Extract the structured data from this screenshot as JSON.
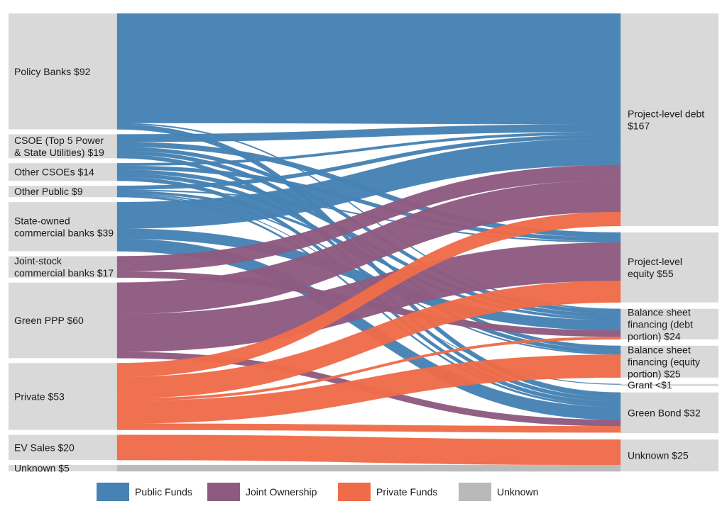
{
  "colors": {
    "public": "#4682b4",
    "joint": "#8e5b80",
    "private": "#ee6c49",
    "unknown": "#b9b9b9",
    "node": "#d9d9d9"
  },
  "chart_data": {
    "type": "sankey",
    "unit": "$",
    "sources": [
      {
        "id": "policy",
        "label_lines": [
          "Policy Banks $92"
        ],
        "value": 92
      },
      {
        "id": "csoe5",
        "label_lines": [
          "CSOE (Top 5 Power",
          "& State Utilities) $19"
        ],
        "value": 19
      },
      {
        "id": "csoe",
        "label_lines": [
          "Other CSOEs $14"
        ],
        "value": 14
      },
      {
        "id": "otherpub",
        "label_lines": [
          "Other Public $9"
        ],
        "value": 9
      },
      {
        "id": "socb",
        "label_lines": [
          "State-owned",
          "commercial banks $39"
        ],
        "value": 39
      },
      {
        "id": "jscb",
        "label_lines": [
          "Joint-stock",
          "commercial banks $17"
        ],
        "value": 17
      },
      {
        "id": "ppp",
        "label_lines": [
          "Green PPP $60"
        ],
        "value": 60
      },
      {
        "id": "private",
        "label_lines": [
          "Private $53"
        ],
        "value": 53
      },
      {
        "id": "ev",
        "label_lines": [
          "EV Sales $20"
        ],
        "value": 20
      },
      {
        "id": "unknown_src",
        "label_lines": [
          "Unknown $5"
        ],
        "value": 5
      }
    ],
    "targets": [
      {
        "id": "pdebt",
        "label_lines": [
          "Project-level debt",
          "$167"
        ],
        "value": 167
      },
      {
        "id": "pequity",
        "label_lines": [
          "Project-level",
          "equity $55"
        ],
        "value": 55
      },
      {
        "id": "bsdebt",
        "label_lines": [
          "Balance sheet",
          "financing (debt",
          "portion) $24"
        ],
        "value": 24
      },
      {
        "id": "bsequity",
        "label_lines": [
          "Balance sheet",
          "financing (equity",
          "portion) $25"
        ],
        "value": 25
      },
      {
        "id": "grant",
        "label_lines": [
          "Grant <$1"
        ],
        "value": 0.5
      },
      {
        "id": "gbond",
        "label_lines": [
          "Green Bond $32"
        ],
        "value": 32
      },
      {
        "id": "unknown_tgt",
        "label_lines": [
          "Unknown $25"
        ],
        "value": 25
      }
    ],
    "flows": [
      {
        "source": "policy",
        "target": "pdebt",
        "value": 87,
        "category": "public"
      },
      {
        "source": "policy",
        "target": "bsdebt",
        "value": 1,
        "category": "public"
      },
      {
        "source": "policy",
        "target": "gbond",
        "value": 4,
        "category": "public"
      },
      {
        "source": "csoe5",
        "target": "pdebt",
        "value": 6,
        "category": "public"
      },
      {
        "source": "csoe5",
        "target": "pequity",
        "value": 4,
        "category": "public"
      },
      {
        "source": "csoe5",
        "target": "bsdebt",
        "value": 3,
        "category": "public"
      },
      {
        "source": "csoe5",
        "target": "bsequity",
        "value": 3,
        "category": "public"
      },
      {
        "source": "csoe5",
        "target": "gbond",
        "value": 3,
        "category": "public"
      },
      {
        "source": "csoe",
        "target": "pdebt",
        "value": 2,
        "category": "public"
      },
      {
        "source": "csoe",
        "target": "pequity",
        "value": 3,
        "category": "public"
      },
      {
        "source": "csoe",
        "target": "bsdebt",
        "value": 3,
        "category": "public"
      },
      {
        "source": "csoe",
        "target": "bsequity",
        "value": 3,
        "category": "public"
      },
      {
        "source": "csoe",
        "target": "gbond",
        "value": 3,
        "category": "public"
      },
      {
        "source": "otherpub",
        "target": "pdebt",
        "value": 3,
        "category": "public"
      },
      {
        "source": "otherpub",
        "target": "pequity",
        "value": 1,
        "category": "public"
      },
      {
        "source": "otherpub",
        "target": "bsdebt",
        "value": 2,
        "category": "public"
      },
      {
        "source": "otherpub",
        "target": "bsequity",
        "value": 1,
        "category": "public"
      },
      {
        "source": "otherpub",
        "target": "grant",
        "value": 0.5,
        "category": "public"
      },
      {
        "source": "otherpub",
        "target": "gbond",
        "value": 1.5,
        "category": "public"
      },
      {
        "source": "socb",
        "target": "pdebt",
        "value": 21,
        "category": "public"
      },
      {
        "source": "socb",
        "target": "bsdebt",
        "value": 8,
        "category": "public"
      },
      {
        "source": "socb",
        "target": "gbond",
        "value": 10,
        "category": "public"
      },
      {
        "source": "jscb",
        "target": "pdebt",
        "value": 12,
        "category": "joint"
      },
      {
        "source": "jscb",
        "target": "bsdebt",
        "value": 5,
        "category": "joint"
      },
      {
        "source": "ppp",
        "target": "pdebt",
        "value": 25,
        "category": "joint"
      },
      {
        "source": "ppp",
        "target": "pequity",
        "value": 30,
        "category": "joint"
      },
      {
        "source": "ppp",
        "target": "gbond",
        "value": 5,
        "category": "joint"
      },
      {
        "source": "private",
        "target": "pdebt",
        "value": 11,
        "category": "private"
      },
      {
        "source": "private",
        "target": "pequity",
        "value": 17,
        "category": "private"
      },
      {
        "source": "private",
        "target": "bsdebt",
        "value": 2,
        "category": "private"
      },
      {
        "source": "private",
        "target": "bsequity",
        "value": 18,
        "category": "private"
      },
      {
        "source": "private",
        "target": "gbond",
        "value": 5,
        "category": "private"
      },
      {
        "source": "ev",
        "target": "unknown_tgt",
        "value": 20,
        "category": "private"
      },
      {
        "source": "unknown_src",
        "target": "unknown_tgt",
        "value": 5,
        "category": "unknown"
      }
    ],
    "legend": [
      {
        "key": "public",
        "label": "Public Funds"
      },
      {
        "key": "joint",
        "label": "Joint Ownership"
      },
      {
        "key": "private",
        "label": "Private Funds"
      },
      {
        "key": "unknown",
        "label": "Unknown"
      }
    ],
    "legend_position": "bottom"
  }
}
